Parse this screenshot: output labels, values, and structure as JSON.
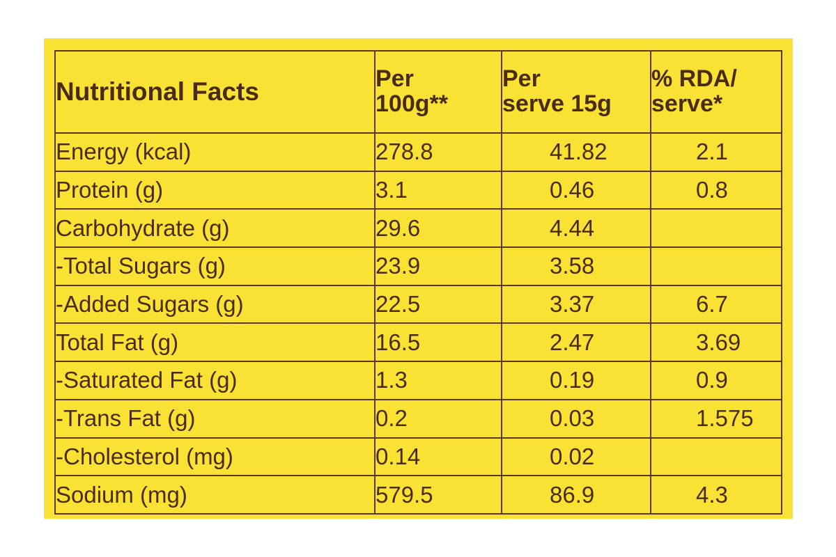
{
  "label": {
    "background_color": "#fae234",
    "ink_color": "#4a2b14",
    "table": {
      "title": "Nutritional Facts",
      "columns": [
        {
          "line1": "Per",
          "line2": "100g**"
        },
        {
          "line1": "Per",
          "line2": "serve 15g"
        },
        {
          "line1": "% RDA/",
          "line2": "serve*"
        }
      ],
      "rows": [
        {
          "nutrient": "Energy (kcal)",
          "per100g": "278.8",
          "perServe": "41.82",
          "rda": "2.1"
        },
        {
          "nutrient": "Protein (g)",
          "per100g": "3.1",
          "perServe": "0.46",
          "rda": "0.8"
        },
        {
          "nutrient": "Carbohydrate (g)",
          "per100g": "29.6",
          "perServe": "4.44",
          "rda": ""
        },
        {
          "nutrient": "-Total Sugars (g)",
          "per100g": "23.9",
          "perServe": "3.58",
          "rda": ""
        },
        {
          "nutrient": "-Added Sugars (g)",
          "per100g": "22.5",
          "perServe": "3.37",
          "rda": "6.7"
        },
        {
          "nutrient": "Total Fat (g)",
          "per100g": "16.5",
          "perServe": "2.47",
          "rda": "3.69"
        },
        {
          "nutrient": "-Saturated Fat (g)",
          "per100g": "1.3",
          "perServe": "0.19",
          "rda": "0.9"
        },
        {
          "nutrient": "-Trans Fat (g)",
          "per100g": "0.2",
          "perServe": "0.03",
          "rda": "1.575"
        },
        {
          "nutrient": "-Cholesterol (mg)",
          "per100g": "0.14",
          "perServe": "0.02",
          "rda": ""
        },
        {
          "nutrient": "Sodium (mg)",
          "per100g": "579.5",
          "perServe": "86.9",
          "rda": "4.3"
        }
      ]
    }
  }
}
